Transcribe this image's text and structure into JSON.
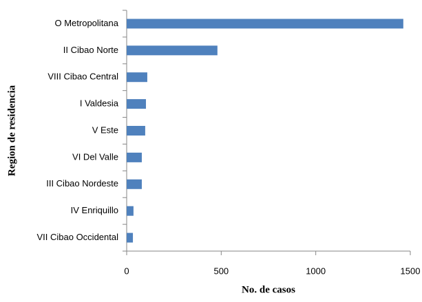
{
  "chart_data": {
    "type": "bar",
    "orientation": "horizontal",
    "categories": [
      "O Metropolitana",
      "II Cibao Norte",
      "VIII Cibao Central",
      "I Valdesia",
      "V Este",
      "VI Del Valle",
      "III Cibao Nordeste",
      "IV Enriquillo",
      "VII Cibao Occidental"
    ],
    "values": [
      1463,
      480,
      109,
      102,
      98,
      80,
      80,
      36,
      33
    ],
    "color": "#4f81bd",
    "xlabel": "No. de casos",
    "ylabel": "Region de residencia",
    "xlim": [
      0,
      1500
    ],
    "xticks": [
      0,
      500,
      1000,
      1500
    ],
    "grid": false
  }
}
